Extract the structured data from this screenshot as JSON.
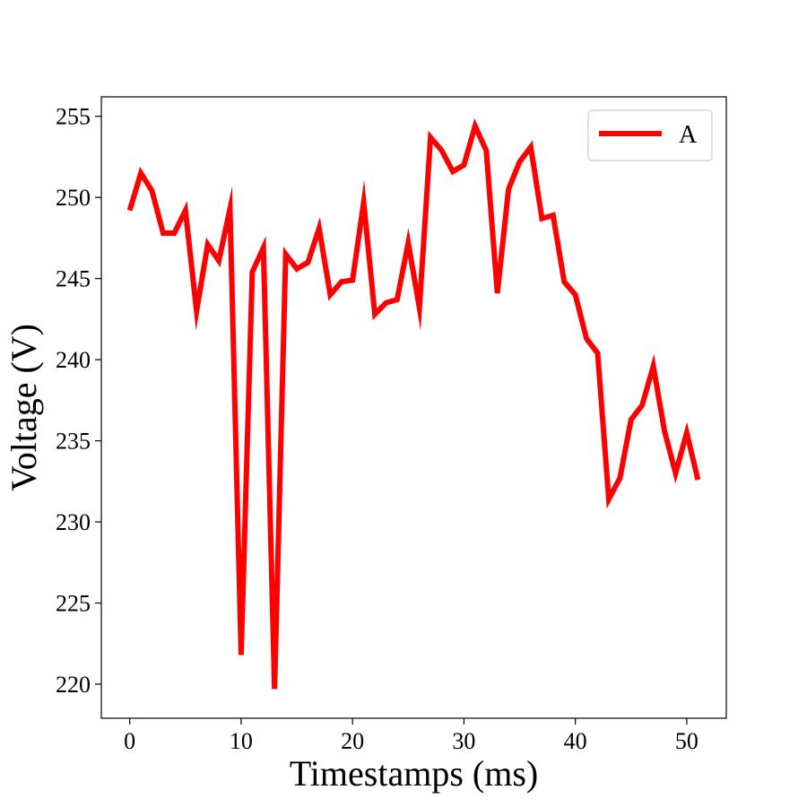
{
  "chart_data": {
    "type": "line",
    "title": "",
    "xlabel": "Timestamps (ms)",
    "ylabel": "Voltage (V)",
    "xlim": [
      -2.55,
      53.55
    ],
    "ylim": [
      217.9,
      256.2
    ],
    "xticks": [
      0,
      10,
      20,
      30,
      40,
      50
    ],
    "yticks": [
      220,
      225,
      230,
      235,
      240,
      245,
      250,
      255
    ],
    "grid": false,
    "legend": {
      "position": "top-right"
    },
    "series": [
      {
        "name": "A",
        "color": "#ff0000",
        "x": [
          0,
          1,
          2,
          3,
          4,
          5,
          6,
          7,
          8,
          9,
          10,
          11,
          12,
          13,
          14,
          15,
          16,
          17,
          18,
          19,
          20,
          21,
          22,
          23,
          24,
          25,
          26,
          27,
          28,
          29,
          30,
          31,
          32,
          33,
          34,
          35,
          36,
          37,
          38,
          39,
          40,
          41,
          42,
          43,
          44,
          45,
          46,
          47,
          48,
          49,
          50,
          51
        ],
        "values": [
          249.2,
          251.5,
          250.4,
          247.8,
          247.8,
          249.2,
          243.0,
          247.1,
          246.1,
          249.3,
          221.8,
          245.4,
          246.9,
          219.7,
          246.5,
          245.6,
          246.0,
          248.1,
          244.0,
          244.8,
          244.9,
          249.7,
          242.8,
          243.5,
          243.7,
          247.2,
          243.2,
          253.7,
          252.9,
          251.6,
          252.0,
          254.4,
          252.9,
          244.1,
          250.5,
          252.2,
          253.1,
          248.7,
          248.9,
          244.8,
          244.0,
          241.3,
          240.4,
          231.4,
          232.7,
          236.3,
          237.2,
          239.6,
          235.6,
          233.0,
          235.5,
          232.6
        ]
      }
    ]
  }
}
